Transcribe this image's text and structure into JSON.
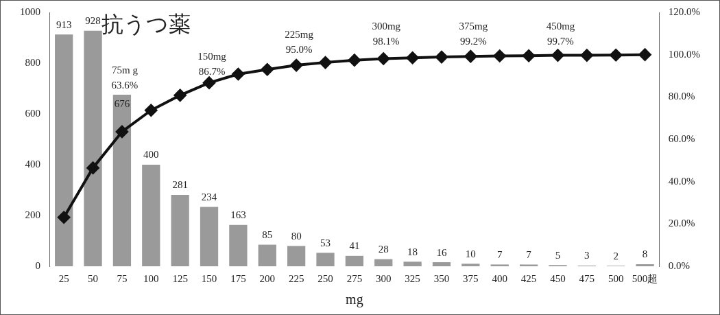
{
  "chart_data": {
    "type": "bar",
    "title": "抗うつ薬",
    "xlabel": "mg",
    "categories": [
      "25",
      "50",
      "75",
      "100",
      "125",
      "150",
      "175",
      "200",
      "225",
      "250",
      "275",
      "300",
      "325",
      "350",
      "375",
      "400",
      "425",
      "450",
      "475",
      "500",
      "500超"
    ],
    "series": [
      {
        "type": "bar",
        "color": "#9a9a9a",
        "values": [
          913,
          928,
          676,
          400,
          281,
          234,
          163,
          85,
          80,
          53,
          41,
          28,
          18,
          16,
          10,
          7,
          7,
          5,
          3,
          2,
          8
        ],
        "value_labels": [
          "913",
          "928",
          "676",
          "400",
          "281",
          "234",
          "163",
          "85",
          "80",
          "53",
          "41",
          "28",
          "18",
          "16",
          "10",
          "7",
          "7",
          "5",
          "3",
          "2",
          "8"
        ]
      },
      {
        "type": "line",
        "axis": "y2",
        "color": "#111111",
        "marker": "diamond",
        "line_style": "solid",
        "values": [
          23.1,
          46.5,
          63.6,
          73.7,
          80.8,
          86.7,
          90.8,
          93.0,
          95.0,
          96.3,
          97.4,
          98.1,
          98.5,
          98.9,
          99.2,
          99.4,
          99.5,
          99.7,
          99.7,
          99.8,
          100.0
        ]
      }
    ],
    "data_labels": false,
    "ylim": [
      0,
      1000
    ],
    "yticks": [
      0,
      200,
      400,
      600,
      800,
      1000
    ],
    "y2lim": [
      0,
      120
    ],
    "y2ticks": [
      {
        "value": 0,
        "label": "0.0%"
      },
      {
        "value": 20,
        "label": "20.0%"
      },
      {
        "value": 40,
        "label": "40.0%"
      },
      {
        "value": 60,
        "label": "60.0%"
      },
      {
        "value": 80,
        "label": "80.0%"
      },
      {
        "value": 100,
        "label": "100.0%"
      },
      {
        "value": 120,
        "label": "120.0%"
      }
    ],
    "annotations": [
      "75m g\n63.6%",
      "150mg\n86.7%",
      "225mg\n95.0%",
      "300mg\n98.1%",
      "375mg\n99.2%",
      "450mg\n99.7%"
    ],
    "grid": false,
    "legend": false
  }
}
